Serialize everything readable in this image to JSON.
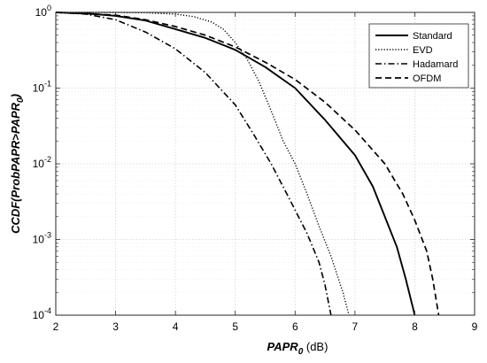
{
  "chart_data": {
    "type": "line",
    "title": "",
    "xlabel": {
      "main": "PAPR",
      "sub": "0",
      "unit": " (dB)"
    },
    "ylabel": {
      "main": "CCDF(ProbPAPR>PAPR",
      "sub": "0",
      "close": ")"
    },
    "xlim": [
      2,
      9
    ],
    "ylim": [
      0.0001,
      1
    ],
    "yscale": "log",
    "grid": true,
    "legend_position": "top-right",
    "x_ticks": [
      "2",
      "3",
      "4",
      "5",
      "6",
      "7",
      "8",
      "9"
    ],
    "y_ticks": [
      {
        "base": "10",
        "exp": "0"
      },
      {
        "base": "10",
        "exp": "-1"
      },
      {
        "base": "10",
        "exp": "-2"
      },
      {
        "base": "10",
        "exp": "-3"
      },
      {
        "base": "10",
        "exp": "-4"
      }
    ],
    "series": [
      {
        "name": "Standard",
        "line_style": "solid",
        "color": "#000000",
        "points": [
          [
            2.0,
            1.0
          ],
          [
            2.5,
            0.97
          ],
          [
            3.0,
            0.9
          ],
          [
            3.5,
            0.78
          ],
          [
            4.0,
            0.6
          ],
          [
            4.5,
            0.46
          ],
          [
            5.0,
            0.32
          ],
          [
            5.5,
            0.19
          ],
          [
            6.0,
            0.1
          ],
          [
            6.5,
            0.038
          ],
          [
            7.0,
            0.013
          ],
          [
            7.3,
            0.005
          ],
          [
            7.5,
            0.002
          ],
          [
            7.7,
            0.0008
          ],
          [
            7.85,
            0.0003
          ],
          [
            8.0,
            0.0001
          ]
        ]
      },
      {
        "name": "EVD",
        "line_style": "dotted",
        "color": "#000000",
        "points": [
          [
            2.0,
            1.0
          ],
          [
            3.0,
            1.0
          ],
          [
            3.5,
            0.99
          ],
          [
            4.0,
            0.95
          ],
          [
            4.3,
            0.88
          ],
          [
            4.6,
            0.75
          ],
          [
            4.8,
            0.6
          ],
          [
            5.0,
            0.4
          ],
          [
            5.2,
            0.24
          ],
          [
            5.4,
            0.12
          ],
          [
            5.6,
            0.05
          ],
          [
            5.8,
            0.02
          ],
          [
            6.0,
            0.01
          ],
          [
            6.2,
            0.004
          ],
          [
            6.4,
            0.0015
          ],
          [
            6.6,
            0.0006
          ],
          [
            6.8,
            0.0002
          ],
          [
            6.9,
            0.0001
          ]
        ]
      },
      {
        "name": "Hadamard",
        "line_style": "dashdot",
        "color": "#000000",
        "points": [
          [
            2.0,
            1.0
          ],
          [
            2.5,
            0.95
          ],
          [
            3.0,
            0.8
          ],
          [
            3.5,
            0.55
          ],
          [
            4.0,
            0.33
          ],
          [
            4.5,
            0.16
          ],
          [
            5.0,
            0.06
          ],
          [
            5.3,
            0.025
          ],
          [
            5.6,
            0.01
          ],
          [
            5.9,
            0.0035
          ],
          [
            6.2,
            0.0012
          ],
          [
            6.4,
            0.0005
          ],
          [
            6.5,
            0.00025
          ],
          [
            6.6,
            0.0001
          ]
        ]
      },
      {
        "name": "OFDM",
        "line_style": "dashed",
        "color": "#000000",
        "points": [
          [
            2.0,
            1.0
          ],
          [
            3.0,
            0.92
          ],
          [
            3.5,
            0.8
          ],
          [
            4.0,
            0.65
          ],
          [
            4.5,
            0.5
          ],
          [
            5.0,
            0.35
          ],
          [
            5.5,
            0.22
          ],
          [
            6.0,
            0.13
          ],
          [
            6.5,
            0.065
          ],
          [
            7.0,
            0.028
          ],
          [
            7.5,
            0.01
          ],
          [
            7.8,
            0.004
          ],
          [
            8.0,
            0.0018
          ],
          [
            8.2,
            0.0007
          ],
          [
            8.3,
            0.0003
          ],
          [
            8.4,
            0.0001
          ]
        ]
      }
    ]
  }
}
